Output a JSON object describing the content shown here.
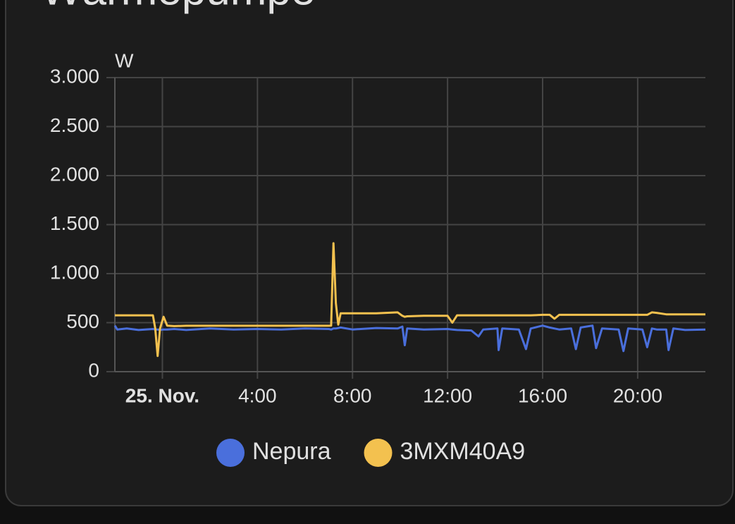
{
  "chart_data": {
    "type": "line",
    "title": "Wärmepumpe",
    "y_label": "W",
    "x": [
      -2,
      -1.9,
      -1.5,
      -1,
      -0.4,
      -0.3,
      -0.2,
      -0.1,
      0.05,
      0.2,
      0.5,
      1,
      2,
      3,
      4,
      5,
      6,
      7,
      7.1,
      7.2,
      7.3,
      7.4,
      7.5,
      8,
      9,
      9.9,
      10.1,
      10.2,
      10.3,
      11,
      12,
      12.2,
      12.4,
      13,
      13.3,
      13.5,
      14.1,
      14.15,
      14.3,
      15,
      15.3,
      15.5,
      16,
      16.3,
      16.5,
      16.7,
      17.2,
      17.4,
      17.6,
      18.1,
      18.25,
      18.5,
      19.2,
      19.4,
      19.6,
      20.2,
      20.4,
      20.6,
      20.8,
      21.2,
      21.3,
      21.5,
      22,
      22.85
    ],
    "series": [
      {
        "name": "Nepura",
        "color": "#4a6fdc",
        "values": [
          470,
          430,
          440,
          425,
          435,
          430,
          430,
          425,
          430,
          430,
          435,
          425,
          440,
          430,
          435,
          430,
          440,
          435,
          430,
          440,
          440,
          445,
          450,
          430,
          445,
          440,
          460,
          270,
          440,
          430,
          435,
          430,
          425,
          420,
          360,
          430,
          440,
          220,
          440,
          430,
          230,
          440,
          470,
          450,
          440,
          430,
          440,
          230,
          450,
          470,
          240,
          440,
          430,
          210,
          440,
          430,
          250,
          440,
          430,
          430,
          220,
          440,
          425,
          430
        ]
      },
      {
        "name": "3MXM40A9",
        "color": "#f3c14f",
        "values": [
          575,
          575,
          575,
          575,
          575,
          440,
          160,
          440,
          560,
          470,
          465,
          468,
          468,
          468,
          468,
          468,
          468,
          468,
          470,
          1310,
          700,
          480,
          595,
          595,
          595,
          605,
          570,
          560,
          565,
          570,
          570,
          500,
          575,
          575,
          575,
          575,
          575,
          575,
          575,
          575,
          575,
          575,
          580,
          580,
          540,
          580,
          580,
          580,
          580,
          580,
          580,
          580,
          580,
          580,
          580,
          580,
          580,
          605,
          600,
          585,
          585,
          585,
          585,
          585
        ]
      }
    ],
    "xlim": [
      -2,
      22.85
    ],
    "xticks": [
      {
        "value": 0,
        "label": "25. Nov."
      },
      {
        "value": 4,
        "label": "4:00"
      },
      {
        "value": 8,
        "label": "8:00"
      },
      {
        "value": 12,
        "label": "12:00"
      },
      {
        "value": 16,
        "label": "16:00"
      },
      {
        "value": 20,
        "label": "20:00"
      }
    ],
    "ylim": [
      0,
      3000
    ],
    "yticks": [
      0,
      500,
      {
        "value": 1000,
        "label": "1.000"
      },
      {
        "value": 1500,
        "label": "1.500"
      },
      {
        "value": 2000,
        "label": "2.000"
      },
      {
        "value": 2500,
        "label": "2.500"
      },
      {
        "value": 3000,
        "label": "3.000"
      }
    ],
    "grid": true
  }
}
